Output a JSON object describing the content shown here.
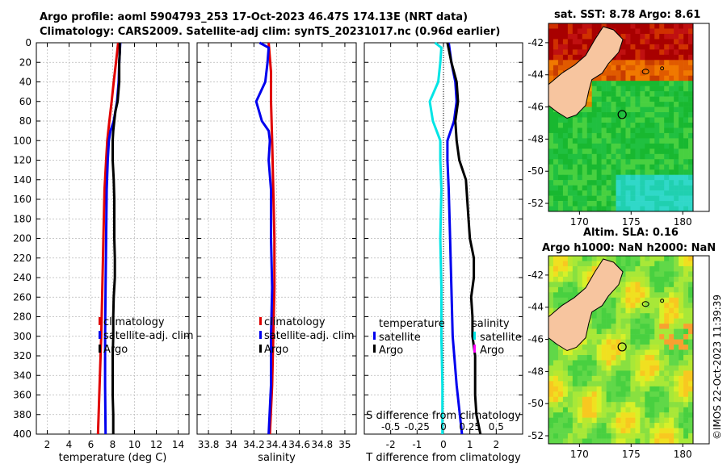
{
  "figure": {
    "title_line1": "Argo profile: aoml 5904793_253 17-Oct-2023 46.47S 174.13E (NRT data)",
    "title_line2": "Climatology: CARS2009. Satellite-adj clim: synTS_20231017.nc (0.96d earlier)",
    "credit": "©IMOS 22-Oct-2023 11:39:39"
  },
  "colors": {
    "climatology": "#e00000",
    "satellite_adj": "#0000ee",
    "argo": "#000000",
    "cyan": "#00e5e5",
    "magenta": "#ff00ff",
    "land": "#f7c59f",
    "grid": "#b8b8b8"
  },
  "chart_data": [
    {
      "id": "temperature",
      "type": "line",
      "xlabel": "temperature (deg C)",
      "xlim": [
        1,
        15
      ],
      "xticks": [
        2,
        4,
        6,
        8,
        10,
        12,
        14
      ],
      "ylim": [
        0,
        400
      ],
      "yticks": [
        0,
        20,
        40,
        60,
        80,
        100,
        120,
        140,
        160,
        180,
        200,
        220,
        240,
        260,
        280,
        300,
        320,
        340,
        360,
        380,
        400
      ],
      "legend": [
        "climatology",
        "satellite-adj. clim",
        "Argo"
      ],
      "series": [
        {
          "name": "climatology",
          "color": "#e00000",
          "depth": [
            0,
            20,
            40,
            60,
            80,
            100,
            120,
            150,
            200,
            250,
            300,
            350,
            400
          ],
          "values": [
            8.5,
            8.3,
            8.1,
            7.9,
            7.7,
            7.5,
            7.4,
            7.25,
            7.15,
            7.05,
            6.95,
            6.8,
            6.65
          ]
        },
        {
          "name": "satellite-adj. clim",
          "color": "#0000ee",
          "depth": [
            0,
            20,
            40,
            60,
            80,
            90,
            100,
            120,
            150,
            200,
            250,
            300,
            350,
            400
          ],
          "values": [
            8.7,
            8.6,
            8.55,
            8.4,
            8.1,
            7.8,
            7.65,
            7.55,
            7.45,
            7.4,
            7.35,
            7.3,
            7.3,
            7.35
          ]
        },
        {
          "name": "Argo",
          "color": "#000000",
          "depth": [
            0,
            10,
            20,
            30,
            40,
            60,
            70,
            80,
            90,
            100,
            120,
            140,
            160,
            180,
            200,
            220,
            240,
            260,
            280,
            300,
            320,
            340,
            360,
            380,
            400
          ],
          "values": [
            8.65,
            8.65,
            8.6,
            8.6,
            8.6,
            8.45,
            8.25,
            8.15,
            8.05,
            8.0,
            8.0,
            8.1,
            8.15,
            8.15,
            8.15,
            8.2,
            8.2,
            8.1,
            8.05,
            8.05,
            8.0,
            8.0,
            8.0,
            8.05,
            8.05
          ]
        }
      ]
    },
    {
      "id": "salinity",
      "type": "line",
      "xlabel": "salinity",
      "xlim": [
        33.7,
        35.1
      ],
      "xticks": [
        33.8,
        34,
        34.2,
        34.4,
        34.6,
        34.8,
        35
      ],
      "xticklabels": [
        "33.8",
        "34",
        "34.2",
        "34.4",
        "34.6",
        "34.8",
        "35"
      ],
      "ylim": [
        0,
        400
      ],
      "legend": [
        "climatology",
        "satellite-adj. clim",
        "Argo"
      ],
      "series": [
        {
          "name": "climatology",
          "color": "#e00000",
          "depth": [
            0,
            30,
            60,
            100,
            150,
            200,
            250,
            300,
            350,
            400
          ],
          "values": [
            34.33,
            34.35,
            34.35,
            34.36,
            34.37,
            34.38,
            34.38,
            34.37,
            34.36,
            34.34
          ]
        },
        {
          "name": "satellite-adj. clim",
          "color": "#0000ee",
          "depth": [
            0,
            5,
            20,
            40,
            60,
            80,
            90,
            100,
            120,
            150,
            200,
            250,
            300,
            350,
            400
          ],
          "values": [
            34.25,
            34.33,
            34.32,
            34.3,
            34.22,
            34.27,
            34.33,
            34.34,
            34.33,
            34.35,
            34.35,
            34.36,
            34.35,
            34.35,
            34.33
          ]
        },
        {
          "name": "Argo",
          "color": "#000000",
          "depth": [
            0
          ],
          "values": [
            34.3
          ]
        }
      ]
    },
    {
      "id": "difference",
      "type": "line",
      "xlabel": "T difference from climatology",
      "xlim": [
        -3,
        3
      ],
      "xticks": [
        -2,
        -1,
        0,
        1,
        2
      ],
      "ylim": [
        0,
        400
      ],
      "top_label": "S difference from climatology",
      "top_ticks": [
        -0.5,
        -0.25,
        0,
        0.25,
        0.5
      ],
      "top_ticklabels": [
        "-0.5",
        "-0.25",
        "0",
        "0.25",
        "0.5"
      ],
      "legend_temperature": {
        "title": "temperature",
        "items": [
          "satellite",
          "Argo"
        ]
      },
      "legend_salinity": {
        "title": "salinity",
        "items": [
          "satellite",
          "Argo"
        ]
      },
      "series": [
        {
          "name": "T satellite",
          "color": "#0000ee",
          "depth": [
            0,
            20,
            40,
            60,
            80,
            100,
            120,
            150,
            200,
            250,
            300,
            350,
            400
          ],
          "values": [
            0.2,
            0.3,
            0.45,
            0.5,
            0.4,
            0.15,
            0.15,
            0.2,
            0.25,
            0.3,
            0.35,
            0.5,
            0.7
          ]
        },
        {
          "name": "T Argo",
          "color": "#000000",
          "depth": [
            0,
            20,
            40,
            60,
            80,
            100,
            120,
            140,
            160,
            180,
            200,
            220,
            240,
            260,
            280,
            300,
            320,
            340,
            360,
            380,
            400
          ],
          "values": [
            0.15,
            0.3,
            0.5,
            0.55,
            0.45,
            0.5,
            0.6,
            0.85,
            0.9,
            0.95,
            1.0,
            1.15,
            1.15,
            1.05,
            1.1,
            1.1,
            1.2,
            1.2,
            1.2,
            1.25,
            1.4
          ]
        },
        {
          "name": "S satellite",
          "color": "#00e5e5",
          "depth": [
            0,
            5,
            20,
            40,
            60,
            80,
            100,
            120,
            150,
            200,
            250,
            300,
            350,
            400
          ],
          "values": [
            -0.08,
            -0.02,
            -0.03,
            -0.05,
            -0.13,
            -0.1,
            -0.03,
            -0.03,
            -0.02,
            -0.03,
            -0.02,
            -0.02,
            -0.01,
            -0.01
          ]
        },
        {
          "name": "S Argo",
          "color": "#ff00ff",
          "depth": [
            0
          ],
          "values": [
            0
          ]
        }
      ]
    },
    {
      "id": "sst_map",
      "type": "heatmap",
      "title": "sat. SST: 8.78 Argo: 8.61",
      "xticks": [
        170,
        175,
        180
      ],
      "yticks": [
        -42,
        -44,
        -46,
        -48,
        -50,
        -52
      ],
      "xlim": [
        167,
        181
      ],
      "ylim": [
        -52.5,
        -40.8
      ],
      "argo_location": [
        174.13,
        -46.47
      ]
    },
    {
      "id": "sla_map",
      "type": "heatmap",
      "title_line1": "Altim. SLA: 0.16",
      "title_line2": "Argo h1000: NaN h2000: NaN",
      "xticks": [
        170,
        175,
        180
      ],
      "yticks": [
        -42,
        -44,
        -46,
        -48,
        -50,
        -52
      ],
      "xlim": [
        167,
        181
      ],
      "ylim": [
        -52.5,
        -40.8
      ],
      "argo_location": [
        174.13,
        -46.47
      ]
    }
  ]
}
